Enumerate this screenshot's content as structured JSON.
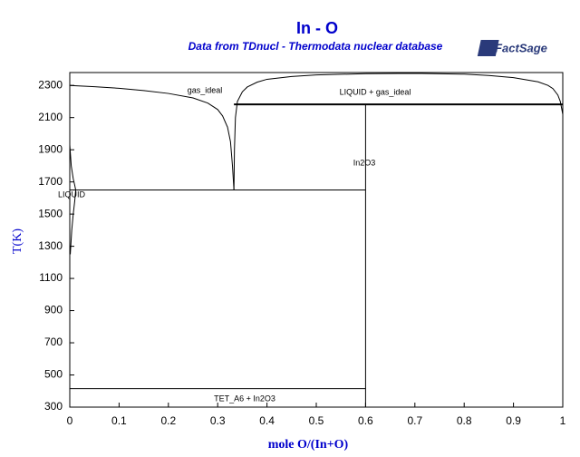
{
  "chart_data": {
    "type": "line",
    "title": "In - O",
    "subtitle": "Data from TDnucl - Thermodata nuclear database",
    "logo": "FactSage",
    "x_label": "mole O/(In+O)",
    "y_label": "T(K)",
    "xlim": [
      0,
      1
    ],
    "ylim": [
      300,
      2380
    ],
    "xticks": [
      0,
      0.1,
      0.2,
      0.3,
      0.4,
      0.5,
      0.6,
      0.7,
      0.8,
      0.9,
      1
    ],
    "yticks": [
      300,
      500,
      700,
      900,
      1100,
      1300,
      1500,
      1700,
      1900,
      2100,
      2300
    ],
    "annotations": [
      "gas_ideal",
      "LIQUID + gas_ideal",
      "In2O3",
      "LIQUID",
      "TET_A6 + In2O3"
    ],
    "series": [
      {
        "color": "#000000",
        "x": [
          0,
          0.05,
          0.1,
          0.15,
          0.2,
          0.25,
          0.28,
          0.3,
          0.31,
          0.32,
          0.326,
          0.33,
          0.333
        ],
        "values": [
          2300,
          2292,
          2282,
          2268,
          2250,
          2222,
          2190,
          2150,
          2110,
          2040,
          1950,
          1800,
          1650
        ]
      },
      {
        "color": "#000000",
        "x": [
          0.333,
          0.334,
          0.336,
          0.34,
          0.35,
          0.36,
          0.38,
          0.4,
          0.45,
          0.5,
          0.6,
          0.7,
          0.8,
          0.85,
          0.9,
          0.95,
          0.97,
          0.98,
          0.99,
          0.995,
          1
        ],
        "values": [
          1650,
          1900,
          2100,
          2200,
          2260,
          2290,
          2320,
          2338,
          2355,
          2365,
          2373,
          2375,
          2370,
          2362,
          2348,
          2322,
          2300,
          2280,
          2240,
          2200,
          2120
        ]
      },
      {
        "color": "#000000",
        "x": [
          0,
          0.003,
          0.007,
          0.01,
          0.012,
          0.01,
          0.007,
          0.004,
          0.001
        ],
        "values": [
          1930,
          1800,
          1720,
          1680,
          1650,
          1580,
          1500,
          1400,
          1250
        ]
      },
      {
        "color": "#000000",
        "x": [
          0,
          0.6
        ],
        "values": [
          1650,
          1650
        ]
      },
      {
        "color": "#000000",
        "x": [
          0,
          0.6
        ],
        "values": [
          415,
          415
        ]
      },
      {
        "color": "#000000",
        "x": [
          0.6,
          0.6
        ],
        "values": [
          300,
          2182
        ]
      },
      {
        "color": "#000000",
        "line_width": 2,
        "x": [
          0.333,
          1
        ],
        "values": [
          2182,
          2182
        ]
      }
    ]
  }
}
